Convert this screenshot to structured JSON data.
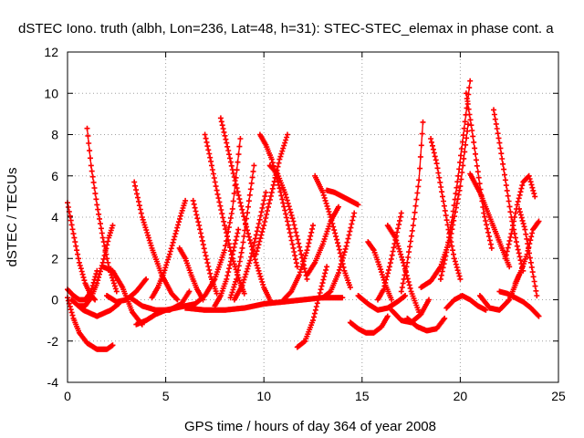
{
  "chart_data": {
    "type": "scatter",
    "title": "dSTEC Iono. truth (albh, Lon=236, Lat=48, h=31): STEC-STEC_elemax in phase cont. a",
    "xlabel": "GPS time / hours of day 364 of year 2008",
    "ylabel": "dSTEC  / TECUs",
    "xlim": [
      0,
      25
    ],
    "ylim": [
      -4,
      12
    ],
    "xticks": [
      "0",
      "5",
      "10",
      "15",
      "20",
      "25"
    ],
    "yticks": [
      "-4",
      "-2",
      "0",
      "2",
      "4",
      "6",
      "8",
      "10",
      "12"
    ],
    "grid": true,
    "marker": "+",
    "series_color": "#ff0000",
    "series": [
      {
        "x": [
          0.0,
          0.3,
          0.6,
          1.0,
          1.5,
          2.0,
          2.3
        ],
        "y": [
          0.1,
          -0.9,
          -1.6,
          -2.1,
          -2.4,
          -2.4,
          -2.2
        ]
      },
      {
        "x": [
          0.0,
          0.3,
          0.6,
          0.9,
          1.2,
          1.4
        ],
        "y": [
          4.7,
          3.2,
          1.8,
          0.8,
          0.2,
          0.0
        ]
      },
      {
        "x": [
          0.0,
          0.3,
          0.6,
          0.9,
          1.2,
          1.5
        ],
        "y": [
          0.5,
          0.2,
          0.0,
          0.0,
          0.4,
          1.4
        ]
      },
      {
        "x": [
          1.0,
          1.2,
          1.5,
          1.8,
          2.1,
          2.5
        ],
        "y": [
          8.3,
          6.5,
          4.6,
          3.0,
          1.6,
          0.4
        ]
      },
      {
        "x": [
          0.6,
          0.9,
          1.2,
          1.5,
          1.8,
          2.1,
          2.3
        ],
        "y": [
          -0.3,
          -0.3,
          0.1,
          0.8,
          1.8,
          3.0,
          3.6
        ]
      },
      {
        "x": [
          0.2,
          0.8,
          1.5,
          2.2,
          2.6
        ],
        "y": [
          0.0,
          -0.5,
          -0.8,
          -0.5,
          -0.2
        ]
      },
      {
        "x": [
          1.8,
          2.3,
          2.8,
          3.3,
          3.8
        ],
        "y": [
          1.6,
          1.4,
          0.6,
          -0.6,
          -1.2
        ]
      },
      {
        "x": [
          2.0,
          2.5,
          3.0,
          3.5,
          4.0
        ],
        "y": [
          0.2,
          -0.1,
          0.0,
          0.4,
          1.0
        ]
      },
      {
        "x": [
          3.4,
          3.8,
          4.3,
          4.8,
          5.3,
          5.6
        ],
        "y": [
          5.7,
          4.0,
          2.5,
          1.2,
          0.3,
          0.0
        ]
      },
      {
        "x": [
          3.5,
          4.0,
          4.5,
          5.0,
          5.5,
          6.0
        ],
        "y": [
          -1.2,
          -1.0,
          -0.7,
          -0.5,
          -0.4,
          -0.3
        ]
      },
      {
        "x": [
          3.2,
          3.8,
          4.5,
          5.2,
          5.8,
          6.2
        ],
        "y": [
          0.1,
          -0.3,
          -0.5,
          -0.5,
          -0.2,
          0.4
        ]
      },
      {
        "x": [
          4.3,
          4.6,
          4.9,
          5.2,
          5.5,
          5.8,
          6.0
        ],
        "y": [
          0.1,
          0.6,
          1.3,
          2.2,
          3.2,
          4.2,
          4.8
        ]
      },
      {
        "x": [
          5.7,
          6.0,
          6.3,
          6.6,
          6.9
        ],
        "y": [
          2.5,
          2.0,
          1.2,
          0.5,
          0.0
        ]
      },
      {
        "x": [
          6.4,
          6.7,
          7.0,
          7.3,
          7.6
        ],
        "y": [
          4.8,
          3.6,
          2.3,
          1.1,
          0.3
        ]
      },
      {
        "x": [
          7.0,
          7.3,
          7.6,
          8.0,
          8.4,
          8.8,
          9.0
        ],
        "y": [
          8.0,
          6.7,
          5.3,
          3.6,
          2.0,
          0.8,
          0.3
        ]
      },
      {
        "x": [
          7.8,
          8.1,
          8.4,
          8.8,
          9.2,
          9.6,
          10.0,
          10.3
        ],
        "y": [
          8.8,
          7.6,
          6.3,
          4.7,
          3.2,
          1.8,
          0.6,
          0.0
        ]
      },
      {
        "x": [
          6.0,
          6.5,
          7.0,
          7.5,
          8.0,
          8.4,
          8.8
        ],
        "y": [
          -0.3,
          -0.2,
          0.2,
          1.0,
          2.4,
          4.4,
          7.8
        ]
      },
      {
        "x": [
          7.5,
          7.8,
          8.1,
          8.4,
          8.7
        ],
        "y": [
          -0.3,
          0.2,
          1.0,
          2.2,
          3.4
        ]
      },
      {
        "x": [
          8.3,
          8.6,
          8.9,
          9.2,
          9.5
        ],
        "y": [
          0.1,
          1.0,
          2.5,
          4.5,
          6.5
        ]
      },
      {
        "x": [
          8.5,
          8.9,
          9.3,
          9.7,
          10.1
        ],
        "y": [
          0.0,
          0.7,
          1.9,
          3.5,
          5.2
        ]
      },
      {
        "x": [
          9.6,
          10.0,
          10.4,
          10.8,
          11.2
        ],
        "y": [
          2.2,
          3.6,
          5.2,
          6.8,
          8.0
        ]
      },
      {
        "x": [
          9.8,
          10.1,
          10.4,
          10.8,
          11.2,
          11.5,
          11.7
        ],
        "y": [
          8.0,
          7.5,
          6.8,
          5.4,
          3.8,
          2.5,
          1.6
        ]
      },
      {
        "x": [
          6.0,
          7.0,
          8.0,
          9.0,
          10.0,
          11.0,
          12.0,
          13.0,
          14.0
        ],
        "y": [
          -0.4,
          -0.5,
          -0.5,
          -0.4,
          -0.2,
          -0.1,
          0.0,
          0.1,
          0.1
        ]
      },
      {
        "x": [
          10.3,
          10.7,
          11.1,
          11.5,
          11.9,
          12.2
        ],
        "y": [
          6.5,
          6.1,
          5.1,
          3.8,
          2.2,
          1.0
        ]
      },
      {
        "x": [
          11.0,
          11.4,
          11.8,
          12.2,
          12.5
        ],
        "y": [
          0.0,
          0.4,
          1.2,
          2.4,
          3.6
        ]
      },
      {
        "x": [
          11.7,
          12.1,
          12.5,
          12.9,
          13.2
        ],
        "y": [
          -2.3,
          -2.0,
          -1.0,
          0.5,
          1.6
        ]
      },
      {
        "x": [
          12.2,
          12.6,
          13.0,
          13.4,
          13.8
        ],
        "y": [
          1.2,
          1.8,
          2.7,
          3.8,
          4.5
        ]
      },
      {
        "x": [
          12.6,
          13.0,
          13.4,
          13.8,
          14.1,
          14.4
        ],
        "y": [
          6.0,
          5.2,
          4.0,
          2.6,
          1.4,
          0.6
        ]
      },
      {
        "x": [
          13.0,
          13.4,
          13.8,
          14.2,
          14.6
        ],
        "y": [
          0.1,
          0.4,
          1.3,
          2.6,
          4.2
        ]
      },
      {
        "x": [
          13.2,
          13.6,
          14.0,
          14.4,
          14.8
        ],
        "y": [
          5.3,
          5.2,
          5.0,
          4.8,
          4.6
        ]
      },
      {
        "x": [
          14.4,
          14.8,
          15.2,
          15.6,
          16.0,
          16.3
        ],
        "y": [
          -1.1,
          -1.4,
          -1.6,
          -1.6,
          -1.3,
          -0.8
        ]
      },
      {
        "x": [
          14.8,
          15.3,
          15.8,
          16.3,
          16.8,
          17.2
        ],
        "y": [
          0.2,
          -0.2,
          -0.5,
          -0.4,
          -0.1,
          0.2
        ]
      },
      {
        "x": [
          15.3,
          15.6,
          15.9,
          16.2,
          16.5
        ],
        "y": [
          2.8,
          2.4,
          1.6,
          0.7,
          0.0
        ]
      },
      {
        "x": [
          15.8,
          16.1,
          16.4,
          16.7,
          17.0
        ],
        "y": [
          0.0,
          0.5,
          1.6,
          2.9,
          4.2
        ]
      },
      {
        "x": [
          16.3,
          16.7,
          17.1,
          17.5,
          17.9
        ],
        "y": [
          3.6,
          3.0,
          1.8,
          0.4,
          -0.6
        ]
      },
      {
        "x": [
          16.5,
          17.0,
          17.5,
          18.0,
          18.4
        ],
        "y": [
          -0.5,
          -1.0,
          -1.1,
          -0.7,
          0.0
        ]
      },
      {
        "x": [
          17.0,
          17.3,
          17.6,
          17.9,
          18.1
        ],
        "y": [
          0.4,
          1.8,
          3.6,
          5.8,
          8.6
        ]
      },
      {
        "x": [
          17.3,
          17.8,
          18.3,
          18.8,
          19.2
        ],
        "y": [
          -0.9,
          -1.3,
          -1.5,
          -1.4,
          -0.9
        ]
      },
      {
        "x": [
          18.5,
          18.8,
          19.1,
          19.4,
          19.7,
          20.0
        ],
        "y": [
          7.8,
          6.6,
          5.0,
          3.4,
          2.0,
          1.0
        ]
      },
      {
        "x": [
          18.0,
          18.5,
          19.0,
          19.5,
          20.0,
          20.4
        ],
        "y": [
          0.6,
          0.9,
          1.6,
          3.0,
          5.5,
          8.5
        ]
      },
      {
        "x": [
          19.0,
          19.3,
          19.6,
          19.9,
          20.2,
          20.5
        ],
        "y": [
          1.0,
          2.3,
          4.0,
          6.0,
          8.3,
          10.6
        ]
      },
      {
        "x": [
          20.3,
          20.6,
          20.9,
          21.2,
          21.6
        ],
        "y": [
          10.0,
          8.2,
          6.2,
          4.2,
          2.5
        ]
      },
      {
        "x": [
          19.3,
          19.7,
          20.1,
          20.5,
          20.9,
          21.3
        ],
        "y": [
          -0.4,
          0.0,
          0.2,
          0.0,
          -0.3,
          -0.5
        ]
      },
      {
        "x": [
          20.5,
          21.0,
          21.5,
          22.0,
          22.5
        ],
        "y": [
          6.1,
          5.2,
          4.0,
          2.8,
          1.6
        ]
      },
      {
        "x": [
          21.0,
          21.5,
          22.0,
          22.5,
          23.0
        ],
        "y": [
          0.2,
          -0.4,
          -0.5,
          0.0,
          1.2
        ]
      },
      {
        "x": [
          21.7,
          22.0,
          22.3,
          22.6,
          22.9,
          23.2
        ],
        "y": [
          9.2,
          7.6,
          5.8,
          4.0,
          2.6,
          1.4
        ]
      },
      {
        "x": [
          22.0,
          22.4,
          22.8,
          23.2,
          23.6,
          24.0
        ],
        "y": [
          0.4,
          0.3,
          0.1,
          -0.1,
          -0.4,
          -0.8
        ]
      },
      {
        "x": [
          22.3,
          22.6,
          22.9,
          23.2,
          23.5,
          23.8
        ],
        "y": [
          2.0,
          3.2,
          4.6,
          5.7,
          6.0,
          5.0
        ]
      },
      {
        "x": [
          23.0,
          23.3,
          23.6,
          23.9
        ],
        "y": [
          4.4,
          3.4,
          1.8,
          0.2
        ]
      },
      {
        "x": [
          22.8,
          23.1,
          23.4,
          23.7,
          24.0
        ],
        "y": [
          0.8,
          1.4,
          2.2,
          3.4,
          3.8
        ]
      }
    ]
  }
}
